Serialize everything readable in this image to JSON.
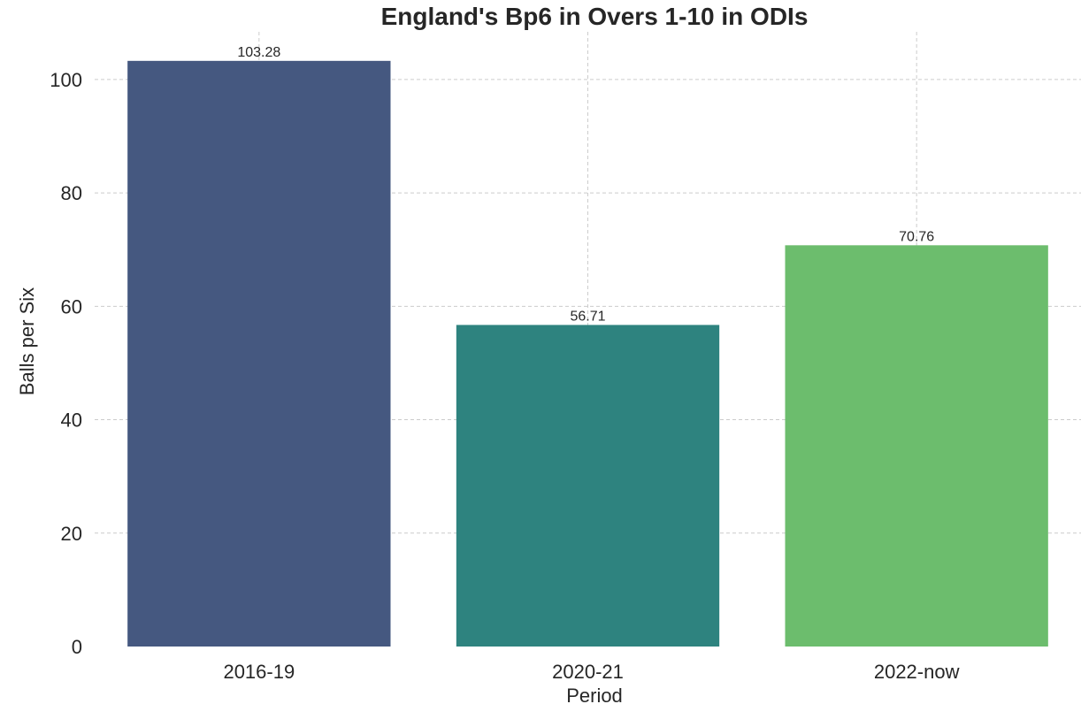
{
  "chart_data": {
    "type": "bar",
    "title": "England's Bp6 in Overs 1-10 in ODIs",
    "xlabel": "Period",
    "ylabel": "Balls per Six",
    "categories": [
      "2016-19",
      "2020-21",
      "2022-now"
    ],
    "values": [
      103.28,
      56.71,
      70.76
    ],
    "value_labels": [
      "103.28",
      "56.71",
      "70.76"
    ],
    "colors": [
      "#455880",
      "#2e837f",
      "#6cbd6d"
    ],
    "ylim": [
      0,
      108.4
    ],
    "yticks": [
      0,
      20,
      40,
      60,
      80,
      100
    ],
    "ytick_labels": [
      "0",
      "20",
      "40",
      "60",
      "80",
      "100"
    ],
    "grid": true,
    "legend": false
  }
}
